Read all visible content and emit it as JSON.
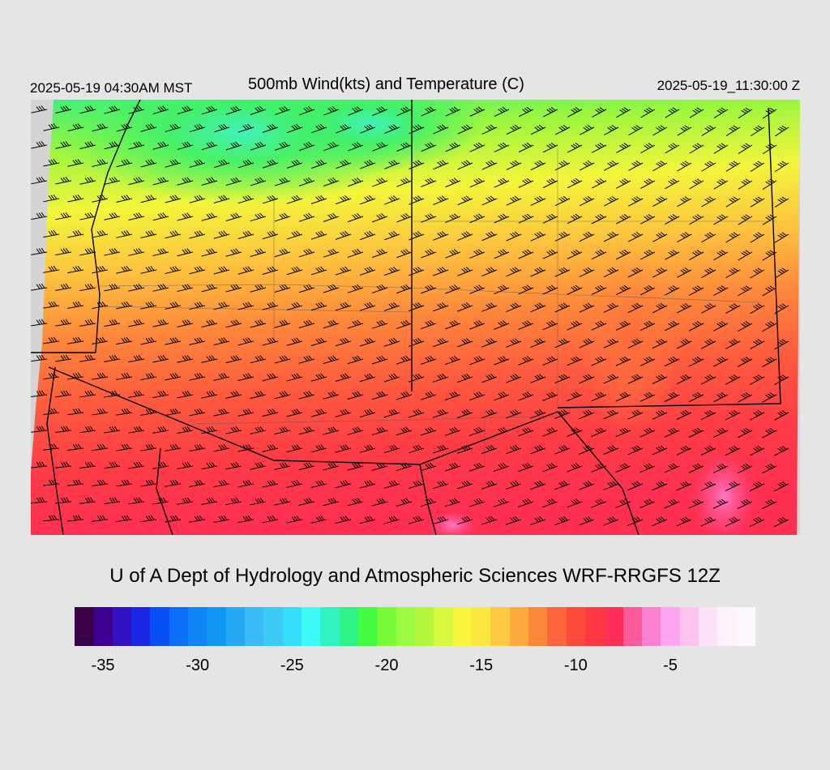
{
  "header": {
    "local_time": "2025-05-19 04:30AM MST",
    "title": "500mb Wind(kts) and Temperature (C)",
    "valid_time": "2025-05-19_11:30:00 Z"
  },
  "credit": "U of A Dept of Hydrology and Atmospheric Sciences WRF-RRGFS 12Z",
  "colorbar": {
    "colors": [
      "#3a0048",
      "#3d0090",
      "#3411c4",
      "#1a28e6",
      "#0850f6",
      "#0a6ef8",
      "#0f86f7",
      "#1296f4",
      "#26a8f5",
      "#3bbcf6",
      "#3ccaf7",
      "#35defb",
      "#3cfbf9",
      "#31f2c1",
      "#2ef387",
      "#46fb44",
      "#79fa38",
      "#9cfa40",
      "#b3f63e",
      "#d8f83e",
      "#f8f53c",
      "#fbe63f",
      "#fdc942",
      "#fdab3d",
      "#fd8739",
      "#fd653a",
      "#fd4a3d",
      "#ff3842",
      "#ff2e57",
      "#fd5a9a",
      "#fc82cf",
      "#fca6f2",
      "#fcc4ef",
      "#fde1f8",
      "#fef0fd",
      "#fff7fe"
    ],
    "tick_labels": [
      {
        "label": "-35",
        "value": -35
      },
      {
        "label": "-30",
        "value": -30
      },
      {
        "label": "-25",
        "value": -25
      },
      {
        "label": "-20",
        "value": -20
      },
      {
        "label": "-15",
        "value": -15
      },
      {
        "label": "-10",
        "value": -10
      },
      {
        "label": "-5",
        "value": -5
      }
    ],
    "range_min": -36,
    "range_max": -1
  },
  "map": {
    "field_colors": {
      "green": "#3df36a",
      "yellow": "#f8f23c",
      "orange": "#fd8a3c",
      "red": "#fd3e48",
      "magenta": "#fd4f9c"
    },
    "barb_color": "#000000",
    "border_color": "#000000"
  }
}
